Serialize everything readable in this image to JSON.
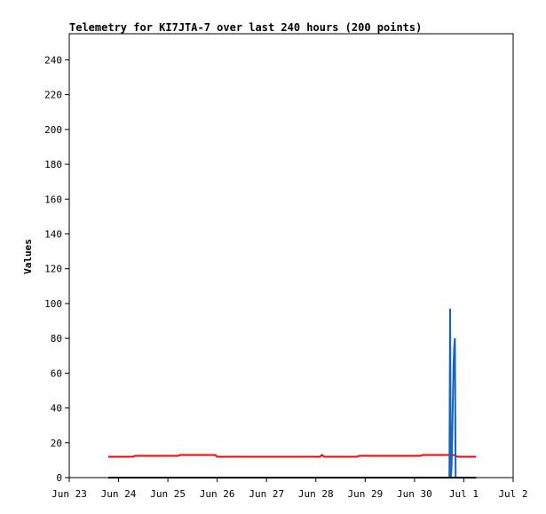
{
  "chart_data": {
    "type": "line",
    "title": "Telemetry for KI7JTA-7 over last 240 hours (200 points)",
    "xlabel": "",
    "ylabel": "Values",
    "xlim": [
      "2025-06-23T00:00",
      "2025-07-02T00:00"
    ],
    "ylim": [
      0,
      255
    ],
    "x_ticks": [
      "Jun 23",
      "Jun 24",
      "Jun 25",
      "Jun 26",
      "Jun 27",
      "Jun 28",
      "Jun 29",
      "Jun 30",
      "Jul 1",
      "Jul 2"
    ],
    "y_ticks": [
      0,
      20,
      40,
      60,
      80,
      100,
      120,
      140,
      160,
      180,
      200,
      220,
      240
    ],
    "grid": false,
    "legend": "none",
    "series": [
      {
        "color": "#ff0000",
        "points": [
          [
            "2025-06-23T19:00",
            12
          ],
          [
            "2025-06-24T07:00",
            12
          ],
          [
            "2025-06-24T08:00",
            12.5
          ],
          [
            "2025-06-25T05:00",
            12.5
          ],
          [
            "2025-06-25T06:00",
            13
          ],
          [
            "2025-06-25T23:00",
            13
          ],
          [
            "2025-06-26T00:00",
            12
          ],
          [
            "2025-06-28T02:00",
            12
          ],
          [
            "2025-06-28T03:00",
            13
          ],
          [
            "2025-06-28T04:00",
            12
          ],
          [
            "2025-06-28T20:00",
            12
          ],
          [
            "2025-06-28T21:00",
            12.5
          ],
          [
            "2025-06-30T03:00",
            12.5
          ],
          [
            "2025-06-30T04:00",
            13
          ],
          [
            "2025-06-30T19:00",
            13
          ],
          [
            "2025-06-30T21:00",
            12
          ],
          [
            "2025-07-01T06:00",
            12
          ]
        ]
      },
      {
        "color": "#1565c0",
        "points": [
          [
            "2025-06-30T17:00",
            0
          ],
          [
            "2025-06-30T17:20",
            97
          ],
          [
            "2025-06-30T17:40",
            0
          ],
          [
            "2025-06-30T18:00",
            5
          ],
          [
            "2025-06-30T18:20",
            20
          ],
          [
            "2025-06-30T18:40",
            45
          ],
          [
            "2025-06-30T19:00",
            65
          ],
          [
            "2025-06-30T19:20",
            75
          ],
          [
            "2025-06-30T19:40",
            80
          ],
          [
            "2025-06-30T20:00",
            0
          ]
        ]
      },
      {
        "color": "#000000",
        "points": [
          [
            "2025-06-23T19:00",
            0
          ],
          [
            "2025-07-01T06:00",
            0
          ]
        ]
      }
    ]
  }
}
